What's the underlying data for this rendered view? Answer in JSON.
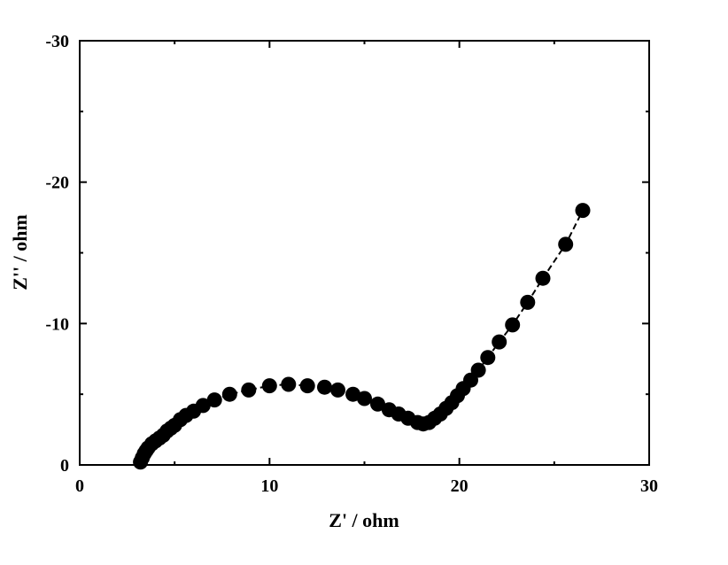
{
  "chart_data": {
    "type": "scatter",
    "title": "",
    "xlabel": "Z' / ohm",
    "ylabel": "Z'' / ohm",
    "xlim": [
      0,
      30
    ],
    "ylim": [
      0,
      -30
    ],
    "xticks": [
      0,
      10,
      20,
      30
    ],
    "yticks": [
      0,
      -10,
      -20,
      -30
    ],
    "xtick_labels": [
      "0",
      "10",
      "20",
      "30"
    ],
    "ytick_labels": [
      "0",
      "-10",
      "-20",
      "-30"
    ],
    "grid": false,
    "legend": "none",
    "marker_color": "#000000",
    "series": [
      {
        "x": [
          3.2,
          3.3,
          3.4,
          3.5,
          3.6,
          3.8,
          4.0,
          4.2,
          4.4,
          4.6,
          4.8,
          5.0,
          5.3,
          5.6,
          6.0,
          6.5,
          7.1,
          7.9,
          8.9,
          10.0,
          11.0,
          12.0,
          12.9,
          13.6,
          14.4,
          15.0,
          15.7,
          16.3,
          16.8,
          17.3,
          17.8,
          18.1,
          18.4,
          18.7,
          19.0,
          19.3,
          19.6,
          19.9,
          20.2,
          20.6,
          21.0,
          21.5,
          22.1,
          22.8,
          23.6,
          24.4,
          25.6,
          26.5
        ],
        "y": [
          -0.2,
          -0.5,
          -0.8,
          -1.0,
          -1.2,
          -1.5,
          -1.7,
          -1.9,
          -2.1,
          -2.4,
          -2.6,
          -2.8,
          -3.2,
          -3.5,
          -3.8,
          -4.2,
          -4.6,
          -5.0,
          -5.3,
          -5.6,
          -5.7,
          -5.6,
          -5.5,
          -5.3,
          -5.0,
          -4.7,
          -4.3,
          -3.9,
          -3.6,
          -3.3,
          -3.0,
          -2.9,
          -3.0,
          -3.3,
          -3.6,
          -4.0,
          -4.4,
          -4.9,
          -5.4,
          -6.0,
          -6.7,
          -7.6,
          -8.7,
          -9.9,
          -11.5,
          -13.2,
          -15.6,
          -18.0
        ]
      }
    ]
  }
}
